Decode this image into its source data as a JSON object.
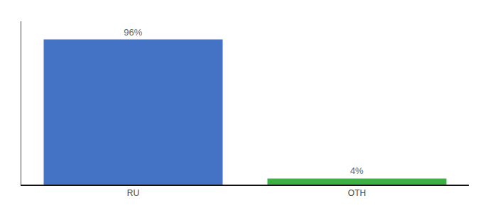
{
  "chart_data": {
    "type": "bar",
    "categories": [
      "RU",
      "OTH"
    ],
    "values": [
      96,
      4
    ],
    "value_labels": [
      "96%",
      "4%"
    ],
    "data_labels": true,
    "colors": [
      "#4472c4",
      "#3cb043"
    ],
    "ylim": [
      0,
      108
    ],
    "grid": false,
    "tick_labels": "x"
  }
}
